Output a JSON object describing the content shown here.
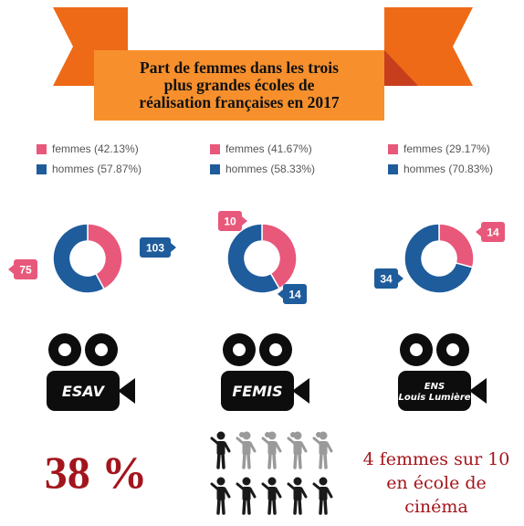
{
  "title": "Part de femmes dans les trois\nplus grandes écoles de\nréalisation françaises en 2017",
  "colors": {
    "femmes": "#e8587b",
    "hommes": "#1e5c9c",
    "accent": "#a3151c",
    "banner": "#f7902c",
    "ribbon": "#ee6a17",
    "ribbon_fold": "#c73e1d",
    "camera": "#0d0d0d",
    "person_dark": "#1a1a1a",
    "person_light": "#9a9a9a"
  },
  "chart_data": [
    {
      "type": "pie",
      "school": "ESAV",
      "series": [
        {
          "name": "femmes (42.13%)",
          "value": 75,
          "label": "75",
          "color": "#e8587b"
        },
        {
          "name": "hommes (57.87%)",
          "value": 103,
          "label": "103",
          "color": "#1e5c9c"
        }
      ]
    },
    {
      "type": "pie",
      "school": "FEMIS",
      "series": [
        {
          "name": "femmes (41.67%)",
          "value": 10,
          "label": "10",
          "color": "#e8587b"
        },
        {
          "name": "hommes (58.33%)",
          "value": 14,
          "label": "14",
          "color": "#1e5c9c"
        }
      ]
    },
    {
      "type": "pie",
      "school": "ENS\nLouis Lumière",
      "series": [
        {
          "name": "femmes (29.17%)",
          "value": 14,
          "label": "14",
          "color": "#e8587b"
        },
        {
          "name": "hommes (70.83%)",
          "value": 34,
          "label": "34",
          "color": "#1e5c9c"
        }
      ]
    }
  ],
  "summary": {
    "percent": "38 %",
    "tagline": "4 femmes sur 10\nen école de\ncinéma",
    "people": {
      "columns": 5,
      "rows": 2,
      "women_top_row": 4
    }
  }
}
